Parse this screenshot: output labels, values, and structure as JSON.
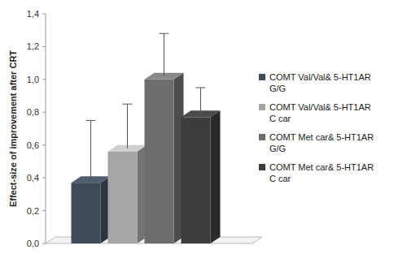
{
  "chart_data": {
    "type": "bar",
    "y_label": "Effect-size of improvement after CRT",
    "categories": [
      null
    ],
    "series": [
      {
        "name": "COMT Val/Val& 5-HT1AR G/G",
        "color": "#3f4a57",
        "values": [
          0.37
        ],
        "error": [
          0.38
        ]
      },
      {
        "name": "COMT Val/Val& 5-HT1AR C car",
        "color": "#a6a6a6",
        "values": [
          0.56
        ],
        "error": [
          0.29
        ]
      },
      {
        "name": "COMT Met car& 5-HT1AR G/G",
        "color": "#6d6d6d",
        "values": [
          1.0
        ],
        "error": [
          0.28
        ]
      },
      {
        "name": "COMT Met car& 5-HT1AR C car",
        "color": "#3c3c3c",
        "values": [
          0.77
        ],
        "error": [
          0.18
        ]
      }
    ],
    "ylim": [
      0,
      1.4
    ],
    "yticks": [
      {
        "value": 0,
        "label": "0,0"
      },
      {
        "value": 0.2,
        "label": "0,2"
      },
      {
        "value": 0.4,
        "label": "0,4"
      },
      {
        "value": 0.6,
        "label": "0,6"
      },
      {
        "value": 0.8,
        "label": "0,8"
      },
      {
        "value": 1.0,
        "label": "1,0"
      },
      {
        "value": 1.2,
        "label": "1,2"
      },
      {
        "value": 1.4,
        "label": "1,4"
      }
    ],
    "grid": false,
    "legend": "right"
  }
}
